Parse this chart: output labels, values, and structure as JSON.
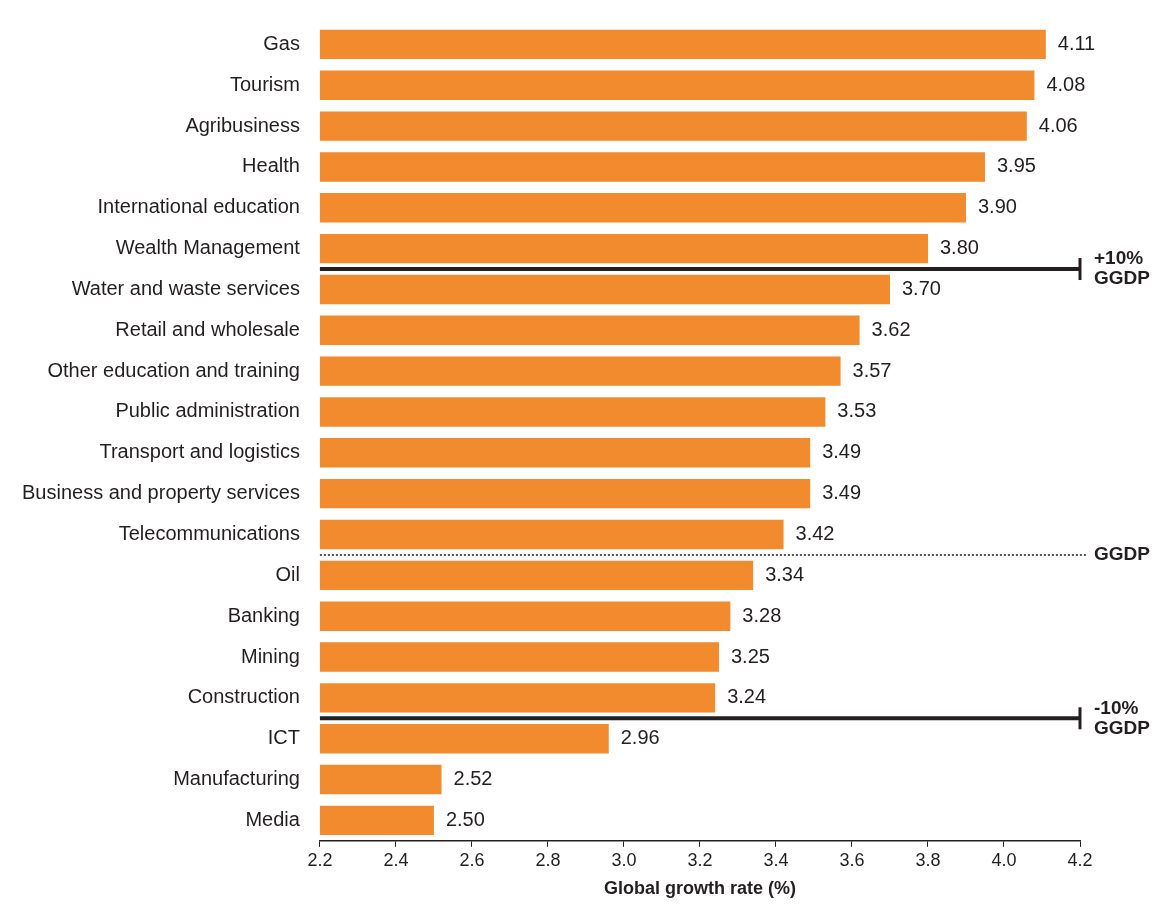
{
  "chart_data": {
    "type": "bar",
    "orientation": "horizontal",
    "xlabel": "Global growth rate (%)",
    "categories": [
      "Gas",
      "Tourism",
      "Agribusiness",
      "Health",
      "International education",
      "Wealth Management",
      "Water and waste services",
      "Retail and wholesale",
      "Other education and training",
      "Public administration",
      "Transport and logistics",
      "Business and property services",
      "Telecommunications",
      "Oil",
      "Banking",
      "Mining",
      "Construction",
      "ICT",
      "Manufacturing",
      "Media"
    ],
    "values": [
      4.11,
      4.08,
      4.06,
      3.95,
      3.9,
      3.8,
      3.7,
      3.62,
      3.57,
      3.53,
      3.49,
      3.49,
      3.42,
      3.34,
      3.28,
      3.25,
      3.24,
      2.96,
      2.52,
      2.5
    ],
    "value_labels": [
      "4.11",
      "4.08",
      "4.06",
      "3.95",
      "3.90",
      "3.80",
      "3.70",
      "3.62",
      "3.57",
      "3.53",
      "3.49",
      "3.49",
      "3.42",
      "3.34",
      "3.28",
      "3.25",
      "3.24",
      "2.96",
      "2.52",
      "2.50"
    ],
    "color": "#f28a2e",
    "xlim": [
      2.2,
      4.2
    ],
    "xticks": [
      2.2,
      2.4,
      2.6,
      2.8,
      {
        "value": 3,
        "label": "3.0"
      },
      3.2,
      3.4,
      3.6,
      3.8,
      {
        "value": 4,
        "label": "4.0"
      },
      4.2
    ],
    "ref_lines": [
      {
        "axis": "y",
        "value": "Wealth Management",
        "label": "+10% GGDP",
        "color": "#231f20",
        "line_style": "solid"
      },
      {
        "axis": "y",
        "value": "Telecommunications",
        "label": "GGDP",
        "color": "#231f20",
        "line_style": "dotted"
      },
      {
        "axis": "y",
        "value": "Construction",
        "label": "-10% GGDP",
        "color": "#231f20",
        "line_style": "solid"
      }
    ],
    "grid": false,
    "legend": false
  }
}
